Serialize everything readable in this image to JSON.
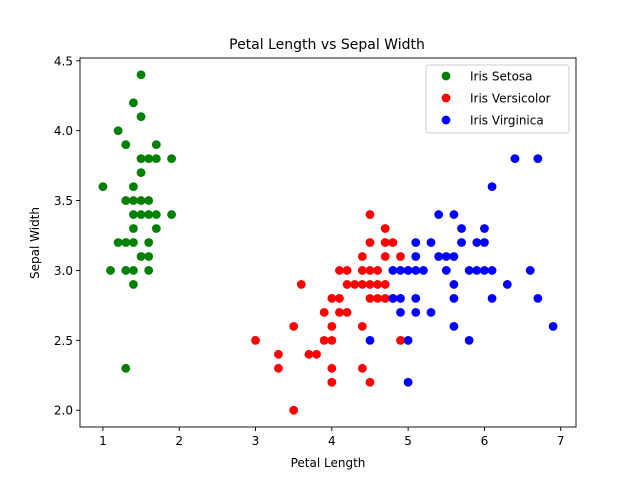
{
  "chart_data": {
    "type": "scatter",
    "title": "Petal Length vs Sepal Width",
    "xlabel": "Petal Length",
    "ylabel": "Sepal Width",
    "xlim": [
      0.7,
      7.2
    ],
    "ylim": [
      1.88,
      4.52
    ],
    "xticks": [
      1,
      2,
      3,
      4,
      5,
      6,
      7
    ],
    "xtick_labels": [
      "1",
      "2",
      "3",
      "4",
      "5",
      "6",
      "7"
    ],
    "yticks": [
      2.0,
      2.5,
      3.0,
      3.5,
      4.0,
      4.5
    ],
    "ytick_labels": [
      "2.0",
      "2.5",
      "3.0",
      "3.5",
      "4.0",
      "4.5"
    ],
    "grid": false,
    "legend_position": "top-right",
    "series": [
      {
        "name": "Iris Setosa",
        "color": "#008000",
        "points": [
          [
            1.0,
            3.6
          ],
          [
            1.1,
            3.0
          ],
          [
            1.2,
            3.2
          ],
          [
            1.2,
            4.0
          ],
          [
            1.3,
            2.3
          ],
          [
            1.3,
            3.0
          ],
          [
            1.3,
            3.2
          ],
          [
            1.3,
            3.5
          ],
          [
            1.3,
            3.9
          ],
          [
            1.4,
            2.9
          ],
          [
            1.4,
            3.0
          ],
          [
            1.4,
            3.2
          ],
          [
            1.4,
            3.3
          ],
          [
            1.4,
            3.4
          ],
          [
            1.4,
            3.5
          ],
          [
            1.4,
            3.6
          ],
          [
            1.4,
            4.2
          ],
          [
            1.5,
            3.1
          ],
          [
            1.5,
            3.4
          ],
          [
            1.5,
            3.5
          ],
          [
            1.5,
            3.7
          ],
          [
            1.5,
            3.8
          ],
          [
            1.5,
            4.1
          ],
          [
            1.5,
            4.4
          ],
          [
            1.6,
            3.0
          ],
          [
            1.6,
            3.1
          ],
          [
            1.6,
            3.2
          ],
          [
            1.6,
            3.4
          ],
          [
            1.6,
            3.5
          ],
          [
            1.6,
            3.8
          ],
          [
            1.7,
            3.3
          ],
          [
            1.7,
            3.4
          ],
          [
            1.7,
            3.8
          ],
          [
            1.7,
            3.9
          ],
          [
            1.9,
            3.4
          ],
          [
            1.9,
            3.8
          ]
        ]
      },
      {
        "name": "Iris Versicolor",
        "color": "#ff0000",
        "points": [
          [
            3.0,
            2.5
          ],
          [
            3.3,
            2.3
          ],
          [
            3.3,
            2.4
          ],
          [
            3.5,
            2.0
          ],
          [
            3.5,
            2.6
          ],
          [
            3.6,
            2.9
          ],
          [
            3.7,
            2.4
          ],
          [
            3.8,
            2.4
          ],
          [
            3.9,
            2.5
          ],
          [
            3.9,
            2.7
          ],
          [
            4.0,
            2.2
          ],
          [
            4.0,
            2.3
          ],
          [
            4.0,
            2.5
          ],
          [
            4.0,
            2.6
          ],
          [
            4.0,
            2.8
          ],
          [
            4.1,
            2.7
          ],
          [
            4.1,
            2.8
          ],
          [
            4.1,
            3.0
          ],
          [
            4.2,
            2.7
          ],
          [
            4.2,
            2.9
          ],
          [
            4.2,
            3.0
          ],
          [
            4.3,
            2.9
          ],
          [
            4.4,
            2.3
          ],
          [
            4.4,
            2.6
          ],
          [
            4.4,
            2.9
          ],
          [
            4.4,
            3.0
          ],
          [
            4.4,
            3.1
          ],
          [
            4.5,
            2.2
          ],
          [
            4.5,
            2.8
          ],
          [
            4.5,
            2.9
          ],
          [
            4.5,
            3.0
          ],
          [
            4.5,
            3.2
          ],
          [
            4.5,
            3.4
          ],
          [
            4.6,
            2.8
          ],
          [
            4.6,
            2.9
          ],
          [
            4.6,
            3.0
          ],
          [
            4.7,
            2.8
          ],
          [
            4.7,
            2.9
          ],
          [
            4.7,
            3.1
          ],
          [
            4.7,
            3.2
          ],
          [
            4.7,
            3.3
          ],
          [
            4.8,
            2.8
          ],
          [
            4.8,
            3.2
          ],
          [
            4.9,
            2.5
          ],
          [
            4.9,
            3.1
          ],
          [
            5.0,
            3.0
          ]
        ]
      },
      {
        "name": "Iris Virginica",
        "color": "#0000ff",
        "points": [
          [
            4.5,
            2.5
          ],
          [
            4.8,
            2.8
          ],
          [
            4.8,
            3.0
          ],
          [
            4.9,
            2.7
          ],
          [
            4.9,
            2.8
          ],
          [
            4.9,
            3.0
          ],
          [
            5.0,
            2.2
          ],
          [
            5.0,
            2.5
          ],
          [
            5.0,
            3.0
          ],
          [
            5.1,
            2.7
          ],
          [
            5.1,
            2.8
          ],
          [
            5.1,
            3.0
          ],
          [
            5.1,
            3.1
          ],
          [
            5.1,
            3.2
          ],
          [
            5.2,
            3.0
          ],
          [
            5.3,
            2.7
          ],
          [
            5.3,
            3.2
          ],
          [
            5.4,
            3.1
          ],
          [
            5.4,
            3.4
          ],
          [
            5.5,
            3.0
          ],
          [
            5.5,
            3.1
          ],
          [
            5.6,
            2.6
          ],
          [
            5.6,
            2.8
          ],
          [
            5.6,
            2.9
          ],
          [
            5.6,
            3.1
          ],
          [
            5.6,
            3.4
          ],
          [
            5.7,
            3.2
          ],
          [
            5.7,
            3.3
          ],
          [
            5.8,
            2.5
          ],
          [
            5.8,
            3.0
          ],
          [
            5.9,
            3.0
          ],
          [
            5.9,
            3.2
          ],
          [
            6.0,
            3.0
          ],
          [
            6.0,
            3.2
          ],
          [
            6.0,
            3.3
          ],
          [
            6.1,
            2.8
          ],
          [
            6.1,
            3.0
          ],
          [
            6.1,
            3.6
          ],
          [
            6.3,
            2.9
          ],
          [
            6.4,
            3.8
          ],
          [
            6.6,
            3.0
          ],
          [
            6.7,
            2.8
          ],
          [
            6.7,
            3.8
          ],
          [
            6.9,
            2.6
          ]
        ]
      }
    ]
  }
}
